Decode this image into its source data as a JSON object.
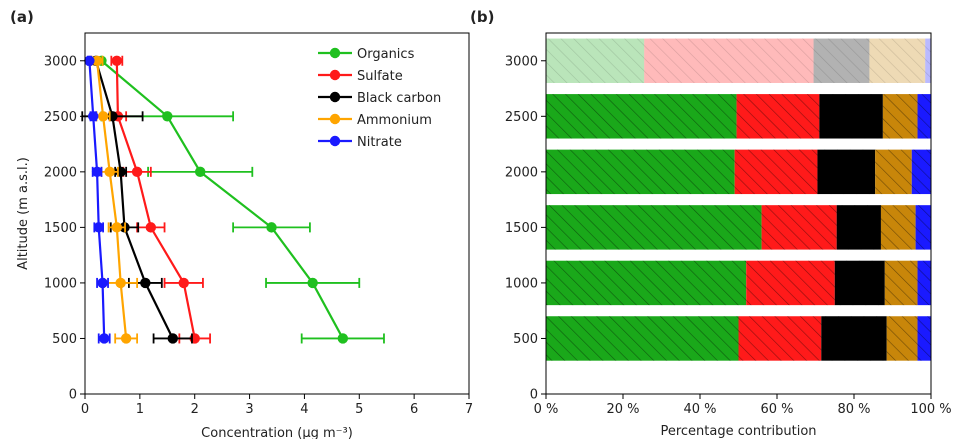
{
  "chart_data": [
    {
      "panel": "(a)",
      "type": "line",
      "xlabel": "Concentration (µg m⁻³)",
      "ylabel": "Altitude (m a.s.l.)",
      "xlim": [
        0,
        7
      ],
      "ylim": [
        0,
        3250
      ],
      "xticks": [
        0,
        1,
        2,
        3,
        4,
        5,
        6,
        7
      ],
      "yticks": [
        0,
        500,
        1000,
        1500,
        2000,
        2500,
        3000
      ],
      "legend_position": "top-right",
      "x_is_value": true,
      "y": [
        500,
        1000,
        1500,
        2000,
        2500,
        3000
      ],
      "series": [
        {
          "name": "Organics",
          "color": "#1fc01f",
          "values": [
            4.7,
            4.15,
            3.4,
            2.1,
            1.5,
            0.3
          ],
          "errors": [
            0.75,
            0.85,
            0.7,
            0.95,
            1.2,
            0
          ]
        },
        {
          "name": "Sulfate",
          "color": "#ff1a1a",
          "values": [
            2.0,
            1.8,
            1.2,
            0.95,
            0.6,
            0.58
          ],
          "errors": [
            0.28,
            0.35,
            0.25,
            0.25,
            0.15,
            0.1
          ]
        },
        {
          "name": "Black carbon",
          "color": "#000000",
          "values": [
            1.6,
            1.1,
            0.72,
            0.65,
            0.5,
            0.2
          ],
          "errors": [
            0.35,
            0.3,
            0.25,
            0.1,
            0.55,
            0
          ]
        },
        {
          "name": "Ammonium",
          "color": "#ffa500",
          "values": [
            0.75,
            0.65,
            0.58,
            0.45,
            0.33,
            0.22
          ],
          "errors": [
            0.2,
            0.3,
            0.15,
            0.15,
            0.12,
            0.1
          ]
        },
        {
          "name": "Nitrate",
          "color": "#1a1aff",
          "values": [
            0.35,
            0.32,
            0.25,
            0.22,
            0.15,
            0.08
          ],
          "errors": [
            0.1,
            0.1,
            0.08,
            0.08,
            0.05,
            0.03
          ]
        }
      ]
    },
    {
      "panel": "(b)",
      "type": "bar",
      "orientation": "horizontal",
      "stacked": true,
      "xlabel": "Percentage contribution",
      "ylabel": "",
      "xlim": [
        0,
        100
      ],
      "ylim": [
        0,
        3250
      ],
      "xticks": [
        0,
        20,
        40,
        60,
        80,
        100
      ],
      "xtick_labels": [
        "0 %",
        "20 %",
        "40 %",
        "60 %",
        "80 %",
        "100 %"
      ],
      "yticks": [
        0,
        500,
        1000,
        1500,
        2000,
        2500,
        3000
      ],
      "categories": [
        500,
        1000,
        1500,
        2000,
        2500,
        3000
      ],
      "faded_categories": [
        3000
      ],
      "series": [
        {
          "name": "Organics",
          "color": "#1aa81a",
          "values": [
            50,
            52,
            56,
            49,
            49.5,
            25.5
          ]
        },
        {
          "name": "Sulfate",
          "color": "#ff1a1a",
          "values": [
            21.5,
            23,
            19.5,
            21.5,
            21.5,
            44
          ]
        },
        {
          "name": "Black carbon",
          "color": "#000000",
          "values": [
            17,
            13,
            11.5,
            15,
            16.5,
            14.5
          ]
        },
        {
          "name": "Ammonium",
          "color": "#c8860a",
          "values": [
            8,
            8.5,
            9,
            9.5,
            9,
            14.5
          ]
        },
        {
          "name": "Nitrate",
          "color": "#1a1aff",
          "values": [
            3.5,
            3.5,
            4,
            5,
            3.5,
            1.5
          ]
        }
      ]
    }
  ]
}
